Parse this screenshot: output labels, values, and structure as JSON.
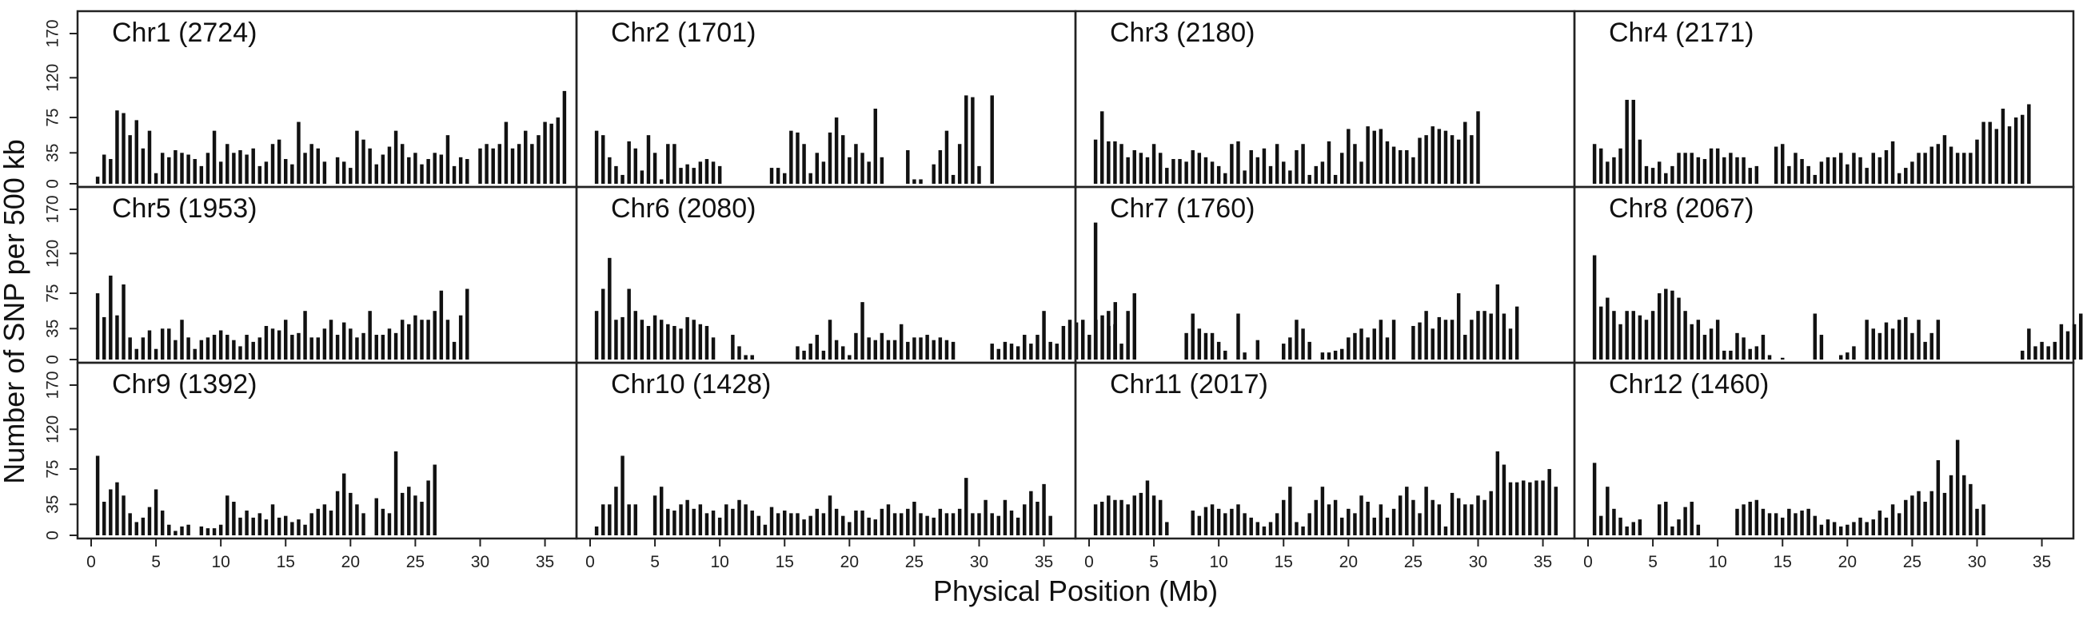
{
  "chart_data": {
    "type": "bar",
    "ylabel": "Number of SNP per 500 kb",
    "xlabel": "Physical Position (Mb)",
    "bin_size_mb": 0.5,
    "xlim": [
      0,
      37
    ],
    "ylim": [
      0,
      170
    ],
    "yticks": [
      0,
      35,
      75,
      120,
      170
    ],
    "xticks": [
      0,
      5,
      10,
      15,
      20,
      25,
      30,
      35
    ],
    "panels": [
      {
        "name": "Chr1 (2724)",
        "start_mb": 0.5,
        "values": [
          8,
          33,
          28,
          83,
          80,
          55,
          72,
          40,
          60,
          12,
          35,
          30,
          38,
          35,
          33,
          28,
          20,
          35,
          60,
          25,
          45,
          35,
          38,
          33,
          40,
          20,
          25,
          45,
          50,
          28,
          22,
          70,
          35,
          45,
          40,
          25,
          0,
          30,
          25,
          18,
          60,
          50,
          40,
          22,
          33,
          42,
          60,
          45,
          30,
          35,
          22,
          28,
          35,
          33,
          55,
          20,
          30,
          28,
          0,
          40,
          45,
          40,
          45,
          70,
          40,
          45,
          60,
          45,
          55,
          70,
          68,
          75,
          105
        ]
      },
      {
        "name": "Chr2 (1701)",
        "start_mb": 0.5,
        "values": [
          60,
          55,
          30,
          20,
          10,
          48,
          40,
          15,
          55,
          35,
          5,
          45,
          45,
          18,
          22,
          18,
          25,
          28,
          25,
          20,
          0,
          0,
          0,
          0,
          0,
          0,
          0,
          18,
          18,
          12,
          60,
          58,
          45,
          12,
          35,
          25,
          58,
          75,
          55,
          30,
          45,
          35,
          25,
          85,
          30,
          0,
          0,
          0,
          38,
          5,
          5,
          0,
          22,
          38,
          60,
          10,
          45,
          100,
          98,
          20,
          0,
          100
        ]
      },
      {
        "name": "Chr3 (2180)",
        "start_mb": 0.5,
        "values": [
          50,
          82,
          48,
          48,
          45,
          30,
          38,
          35,
          30,
          45,
          35,
          18,
          28,
          28,
          25,
          38,
          35,
          30,
          25,
          20,
          12,
          45,
          48,
          15,
          38,
          30,
          40,
          20,
          45,
          25,
          15,
          38,
          45,
          10,
          20,
          25,
          48,
          10,
          35,
          62,
          45,
          25,
          65,
          60,
          62,
          48,
          42,
          38,
          38,
          30,
          52,
          55,
          65,
          62,
          60,
          55,
          50,
          70,
          55,
          82
        ]
      },
      {
        "name": "Chr4 (2171)",
        "start_mb": 0.5,
        "values": [
          45,
          40,
          25,
          30,
          40,
          95,
          95,
          50,
          20,
          18,
          25,
          12,
          20,
          35,
          35,
          35,
          30,
          28,
          40,
          40,
          30,
          35,
          30,
          30,
          18,
          20,
          0,
          0,
          42,
          45,
          20,
          35,
          28,
          20,
          10,
          25,
          30,
          30,
          35,
          22,
          35,
          30,
          18,
          35,
          30,
          38,
          48,
          12,
          18,
          25,
          35,
          35,
          42,
          45,
          55,
          42,
          35,
          35,
          35,
          50,
          70,
          70,
          62,
          85,
          65,
          75,
          78,
          90
        ]
      },
      {
        "name": "Chr5 (1953)",
        "start_mb": 0.5,
        "values": [
          75,
          48,
          95,
          50,
          85,
          25,
          12,
          25,
          33,
          12,
          35,
          35,
          22,
          45,
          25,
          12,
          22,
          25,
          28,
          33,
          28,
          22,
          15,
          28,
          20,
          25,
          38,
          35,
          33,
          45,
          28,
          30,
          55,
          25,
          25,
          35,
          45,
          28,
          42,
          35,
          25,
          30,
          55,
          28,
          28,
          35,
          30,
          45,
          40,
          50,
          45,
          45,
          55,
          78,
          45,
          20,
          50,
          80
        ]
      },
      {
        "name": "Chr6 (2080)",
        "start_mb": 0.5,
        "values": [
          55,
          80,
          115,
          45,
          48,
          80,
          55,
          45,
          38,
          50,
          45,
          40,
          38,
          35,
          48,
          45,
          40,
          38,
          25,
          0,
          0,
          28,
          15,
          5,
          5,
          0,
          0,
          0,
          0,
          0,
          0,
          15,
          10,
          18,
          28,
          10,
          45,
          22,
          15,
          5,
          30,
          65,
          25,
          22,
          30,
          22,
          22,
          40,
          20,
          25,
          25,
          28,
          22,
          25,
          22,
          20,
          0,
          0,
          0,
          0,
          0,
          18,
          12,
          20,
          18,
          15,
          28,
          18,
          28,
          55,
          20,
          18,
          38,
          45,
          42,
          45,
          28,
          45,
          50,
          38,
          65
        ]
      },
      {
        "name": "Chr7 (1760)",
        "start_mb": 0.5,
        "values": [
          155,
          0,
          55,
          40,
          18,
          55,
          75,
          0,
          0,
          0,
          0,
          0,
          0,
          0,
          30,
          52,
          35,
          30,
          30,
          20,
          10,
          0,
          52,
          8,
          0,
          22,
          0,
          0,
          0,
          18,
          25,
          45,
          35,
          20,
          0,
          8,
          8,
          10,
          12,
          25,
          30,
          35,
          25,
          35,
          45,
          25,
          45,
          0,
          0,
          38,
          42,
          55,
          35,
          48,
          45,
          45,
          75,
          28,
          45,
          55,
          55,
          52,
          85,
          52,
          35,
          60
        ]
      },
      {
        "name": "Chr8 (2067)",
        "start_mb": 0.5,
        "values": [
          118,
          60,
          70,
          55,
          40,
          55,
          55,
          50,
          45,
          55,
          75,
          80,
          78,
          70,
          55,
          40,
          45,
          28,
          35,
          45,
          10,
          10,
          30,
          25,
          12,
          15,
          28,
          5,
          0,
          2,
          0,
          0,
          0,
          0,
          52,
          28,
          0,
          0,
          5,
          8,
          15,
          0,
          45,
          35,
          30,
          42,
          35,
          45,
          48,
          30,
          45,
          20,
          30,
          45,
          0,
          0,
          0,
          0,
          0,
          0,
          0,
          0,
          0,
          0,
          0,
          0,
          10,
          35,
          15,
          20,
          15,
          20,
          40,
          32,
          40,
          52,
          40,
          25,
          30,
          35,
          18
        ]
      },
      {
        "name": "Chr9 (1392)",
        "start_mb": 0.5,
        "values": [
          90,
          38,
          52,
          60,
          45,
          25,
          15,
          20,
          32,
          52,
          28,
          12,
          5,
          10,
          12,
          0,
          10,
          8,
          8,
          12,
          45,
          38,
          20,
          28,
          20,
          25,
          18,
          35,
          20,
          22,
          15,
          18,
          12,
          25,
          30,
          35,
          28,
          50,
          70,
          48,
          35,
          25,
          0,
          42,
          30,
          25,
          95,
          48,
          55,
          45,
          38,
          62,
          80
        ]
      },
      {
        "name": "Chr10 (1428)",
        "start_mb": 0.5,
        "values": [
          10,
          35,
          35,
          55,
          90,
          35,
          35,
          0,
          0,
          45,
          55,
          30,
          28,
          35,
          40,
          30,
          35,
          25,
          28,
          20,
          35,
          30,
          40,
          35,
          28,
          22,
          12,
          32,
          25,
          28,
          25,
          25,
          18,
          22,
          30,
          25,
          45,
          30,
          22,
          15,
          28,
          28,
          20,
          18,
          30,
          35,
          25,
          25,
          30,
          38,
          25,
          22,
          20,
          30,
          25,
          25,
          30,
          65,
          25,
          25,
          40,
          25,
          22,
          40,
          28,
          20,
          35,
          50,
          38,
          58,
          22
        ]
      },
      {
        "name": "Chr11 (2017)",
        "start_mb": 0.5,
        "values": [
          35,
          38,
          45,
          40,
          40,
          35,
          45,
          48,
          62,
          45,
          40,
          15,
          0,
          0,
          0,
          28,
          22,
          32,
          35,
          30,
          25,
          30,
          35,
          25,
          20,
          15,
          10,
          15,
          25,
          40,
          55,
          15,
          10,
          25,
          40,
          55,
          35,
          40,
          20,
          30,
          25,
          45,
          38,
          20,
          35,
          20,
          30,
          45,
          55,
          40,
          25,
          55,
          40,
          35,
          10,
          48,
          42,
          35,
          35,
          45,
          40,
          50,
          95,
          80,
          60,
          60,
          62,
          60,
          62,
          62,
          75,
          55
        ]
      },
      {
        "name": "Chr12 (1460)",
        "start_mb": 0.5,
        "values": [
          82,
          22,
          55,
          30,
          20,
          10,
          15,
          18,
          0,
          0,
          35,
          38,
          10,
          18,
          32,
          38,
          12,
          0,
          0,
          0,
          0,
          0,
          30,
          35,
          38,
          40,
          30,
          25,
          25,
          20,
          30,
          25,
          28,
          30,
          22,
          12,
          18,
          15,
          10,
          12,
          15,
          20,
          15,
          18,
          28,
          20,
          35,
          25,
          40,
          45,
          50,
          38,
          50,
          85,
          48,
          68,
          108,
          68,
          58,
          30,
          35
        ]
      }
    ]
  }
}
